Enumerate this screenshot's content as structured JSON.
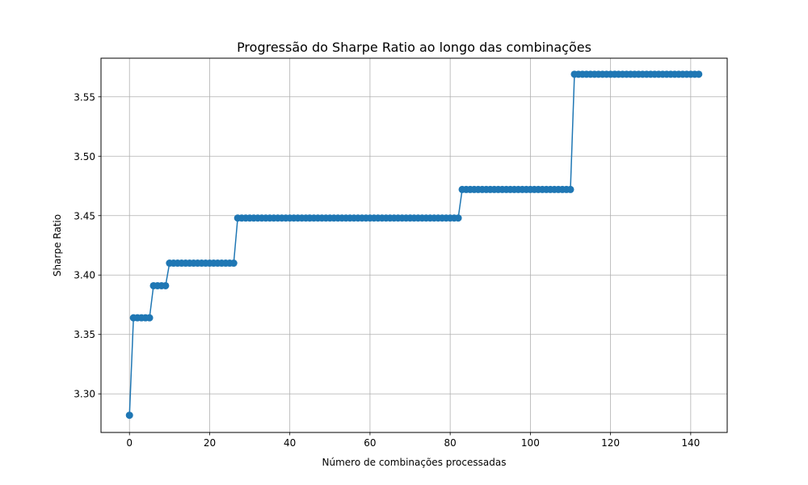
{
  "chart_data": {
    "type": "line",
    "title": "Progressão do Sharpe Ratio ao longo das combinações",
    "xlabel": "Número de combinações processadas",
    "ylabel": "Sharpe Ratio",
    "xlim": [
      -7.1,
      149.1
    ],
    "ylim": [
      3.2675,
      3.5825
    ],
    "xticks": [
      0,
      20,
      40,
      60,
      80,
      100,
      120,
      140
    ],
    "xtick_labels": [
      "0",
      "20",
      "40",
      "60",
      "80",
      "100",
      "120",
      "140"
    ],
    "yticks": [
      3.3,
      3.35,
      3.4,
      3.45,
      3.5,
      3.55
    ],
    "ytick_labels": [
      "3.30",
      "3.35",
      "3.40",
      "3.45",
      "3.50",
      "3.55"
    ],
    "grid": true,
    "color": "#1f77b4",
    "marker": "circle",
    "steps": [
      {
        "x_start": 0,
        "x_end": 0,
        "y": 3.282
      },
      {
        "x_start": 1,
        "x_end": 5,
        "y": 3.364
      },
      {
        "x_start": 6,
        "x_end": 9,
        "y": 3.391
      },
      {
        "x_start": 10,
        "x_end": 26,
        "y": 3.41
      },
      {
        "x_start": 27,
        "x_end": 82,
        "y": 3.448
      },
      {
        "x_start": 83,
        "x_end": 110,
        "y": 3.472
      },
      {
        "x_start": 111,
        "x_end": 142,
        "y": 3.569
      }
    ]
  }
}
